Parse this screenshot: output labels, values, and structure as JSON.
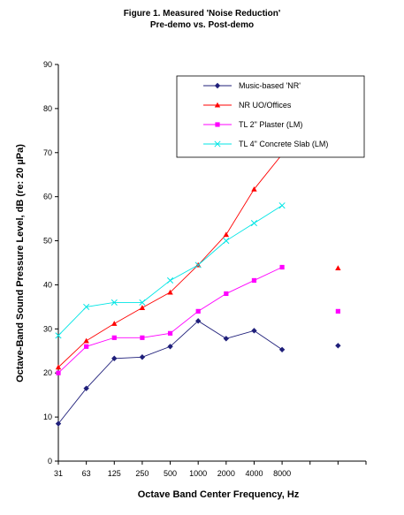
{
  "chart_data": {
    "type": "line",
    "title": "Figure 1. Measured 'Noise Reduction'",
    "subtitle": "Pre-demo vs. Post-demo",
    "xlabel": "Octave Band Center Frequency, Hz",
    "ylabel": "Octave-Band Sound Pressure Level, dB (re: 20 µPa)",
    "categories": [
      "31",
      "63",
      "125",
      "250",
      "500",
      "1000",
      "2000",
      "4000",
      "8000",
      "",
      ""
    ],
    "ylim": [
      0,
      90
    ],
    "yticks": [
      "0",
      "10",
      "20",
      "30",
      "40",
      "50",
      "60",
      "70",
      "80",
      "90"
    ],
    "grid": false,
    "legend_position": "top-right",
    "series": [
      {
        "name": "Music-based 'NR'",
        "color": "#1f1f7a",
        "marker": "diamond",
        "line": true,
        "values": [
          8.5,
          16.5,
          23.3,
          23.6,
          26,
          31.8,
          27.8,
          29.6,
          25.3,
          null,
          26.2
        ]
      },
      {
        "name": "NR UO/Offices",
        "color": "#ff0000",
        "marker": "triangle",
        "line": true,
        "values": [
          21.3,
          27.3,
          31.2,
          34.8,
          38.3,
          44.5,
          51.4,
          61.7,
          69.6,
          null,
          43.8
        ]
      },
      {
        "name": "TL 2\" Plaster (LM)",
        "color": "#ff00ff",
        "marker": "square",
        "line": true,
        "values": [
          20,
          26,
          28,
          28,
          29,
          34,
          38,
          41,
          44,
          null,
          34
        ]
      },
      {
        "name": "TL 4\" Concrete Slab (LM)",
        "color": "#00e5e5",
        "marker": "cross",
        "line": true,
        "values": [
          28.5,
          35,
          36,
          36,
          41,
          44.5,
          50,
          54,
          58,
          null,
          null
        ]
      }
    ]
  }
}
